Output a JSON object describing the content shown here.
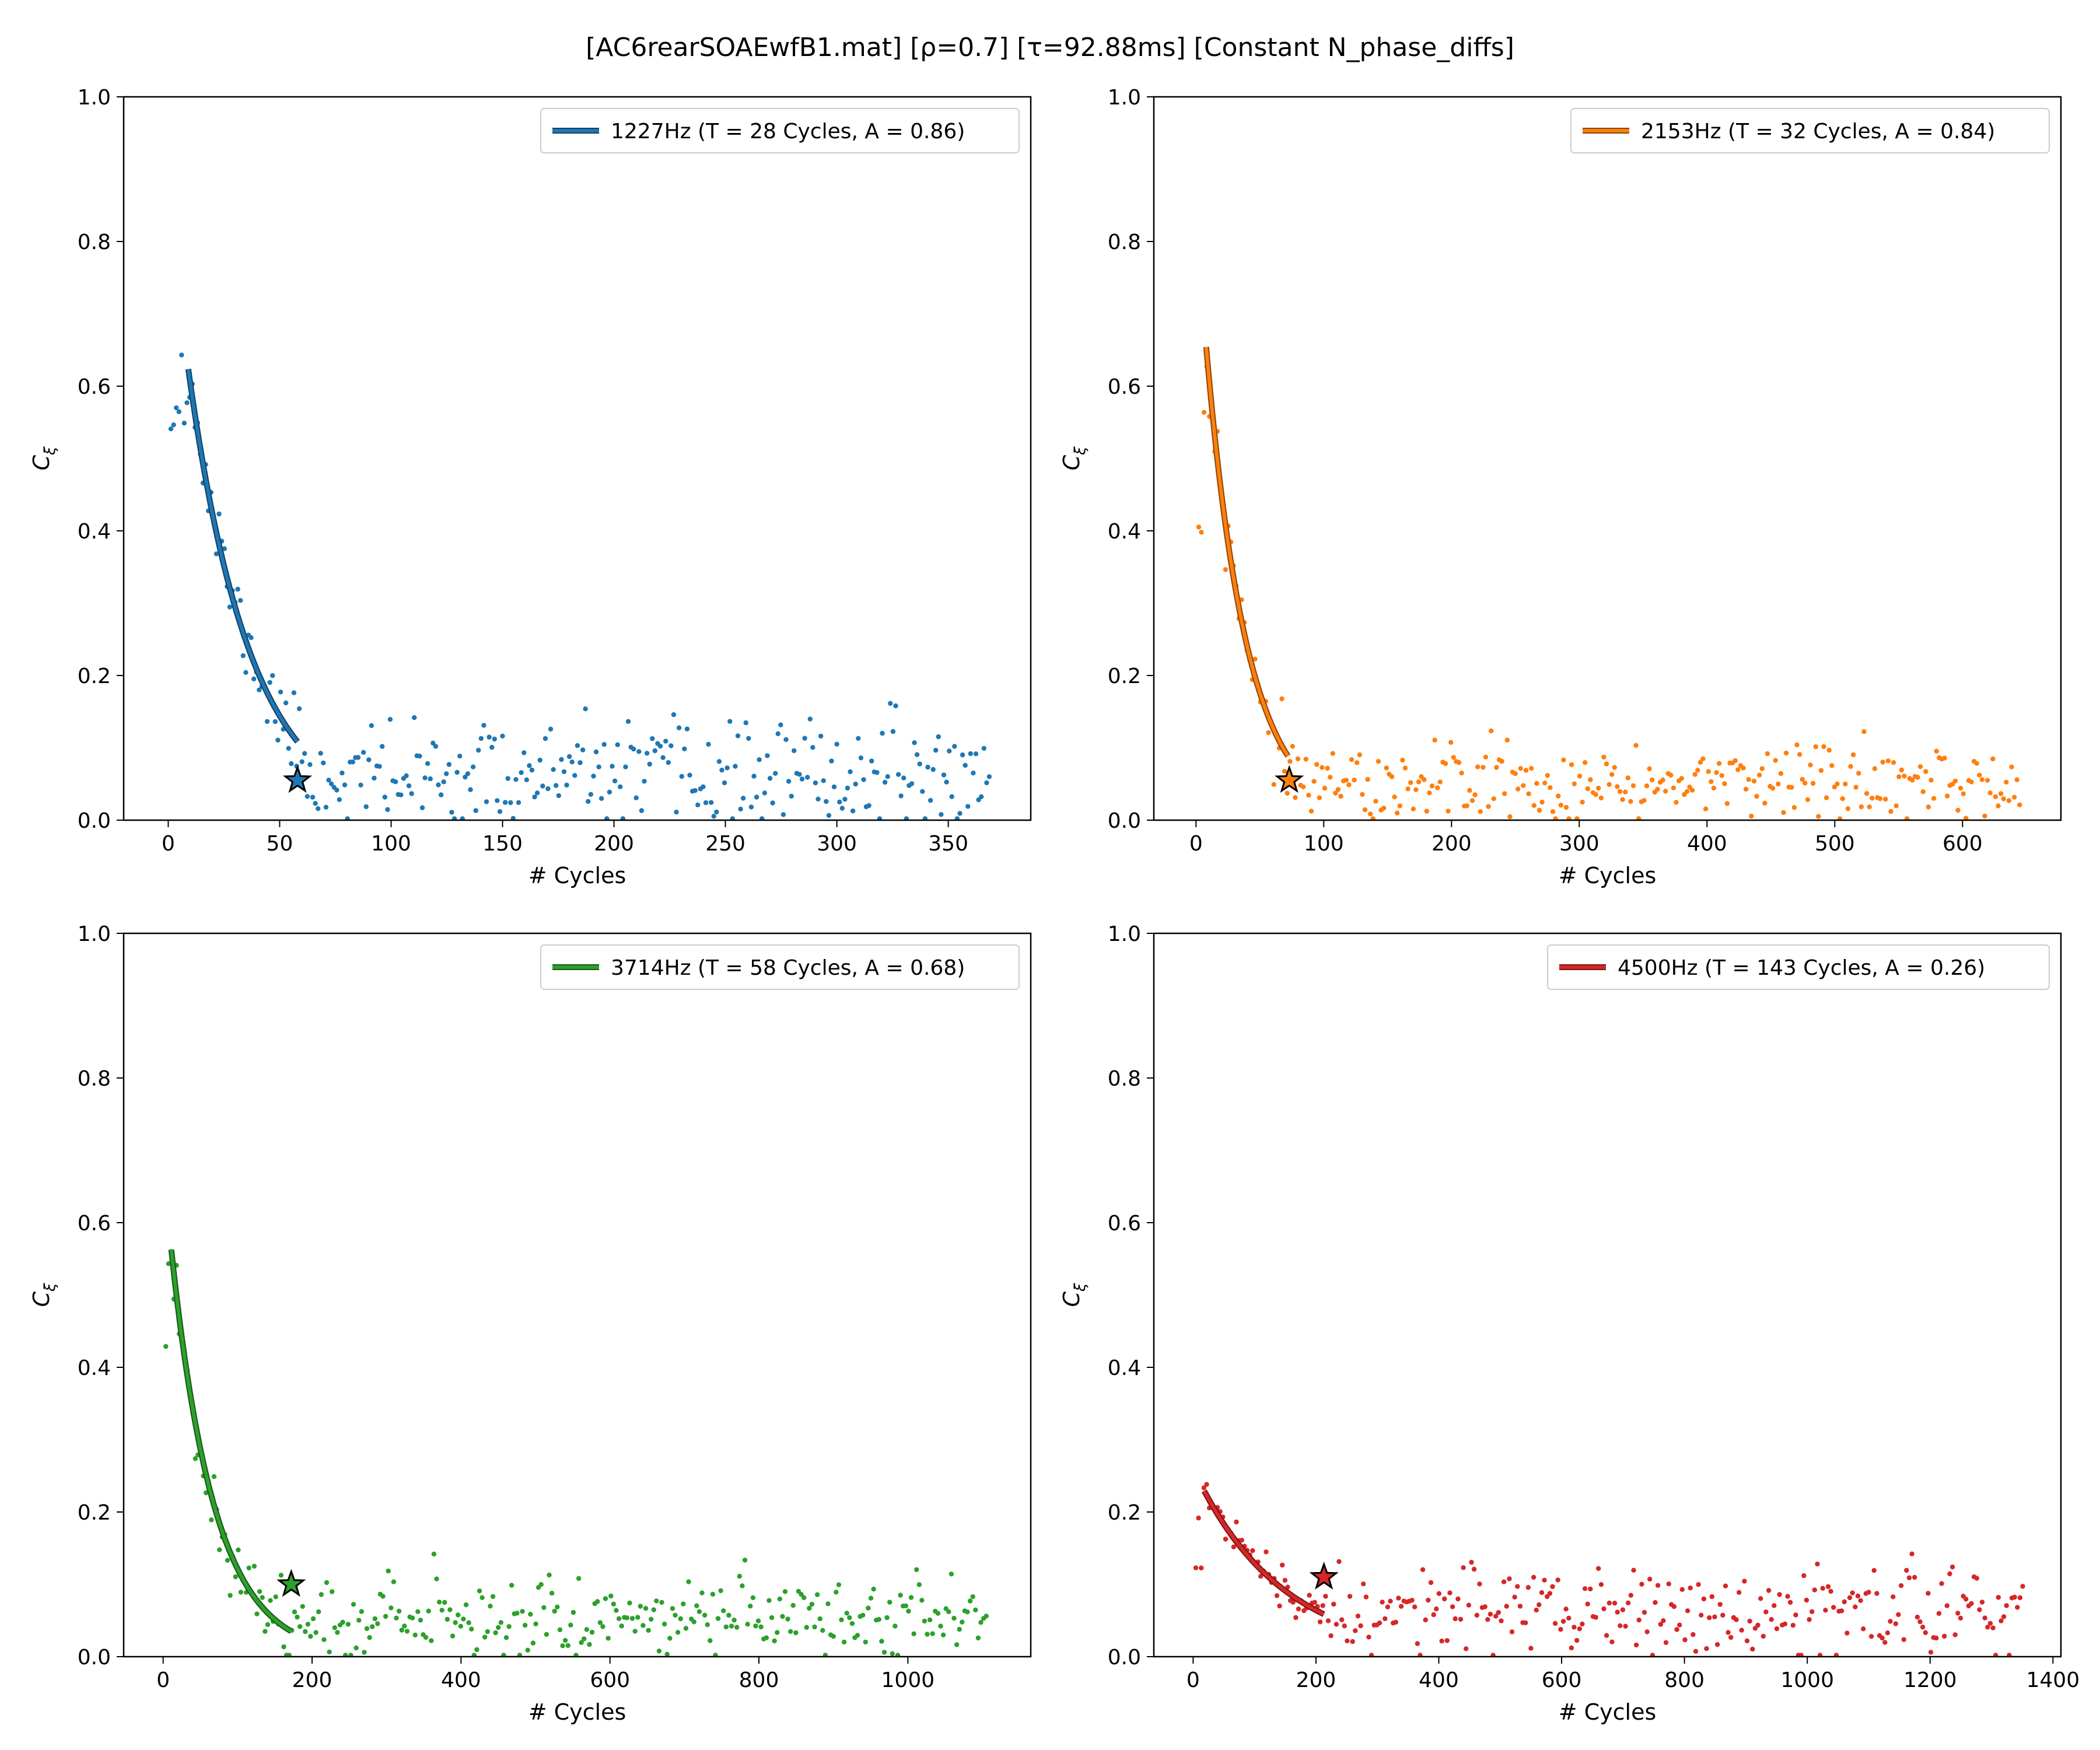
{
  "suptitle": "[AC6rearSOAEwfB1.mat]   [ρ=0.7]   [τ=92.88ms]   [Constant N_phase_diffs]",
  "chart_data": [
    {
      "type": "scatter",
      "color": "#1f77b4",
      "xlabel": "# Cycles",
      "ylabel": "C_ξ",
      "xlim": [
        -20,
        387
      ],
      "ylim": [
        0,
        1.0
      ],
      "xticks": [
        0,
        50,
        100,
        150,
        200,
        250,
        300,
        350
      ],
      "yticks": [
        0.0,
        0.2,
        0.4,
        0.6,
        0.8,
        1.0
      ],
      "legend": "1227Hz (T = 28 Cycles, A = 0.86)",
      "legend_location": "upper right",
      "fit": {
        "A": 0.86,
        "T": 28,
        "x_start": 9,
        "x_end": 58
      },
      "star": {
        "x": 58,
        "y": 0.055
      },
      "scatter": {
        "x_start": 1.2,
        "x_step": 1.2,
        "n": 307,
        "noise_mean": 0.06,
        "noise_sd": 0.035,
        "seed": 11
      }
    },
    {
      "type": "scatter",
      "color": "#ff7f0e",
      "xlabel": "# Cycles",
      "ylabel": "C_ξ",
      "xlim": [
        -33,
        677
      ],
      "ylim": [
        0,
        1.0
      ],
      "xticks": [
        0,
        100,
        200,
        300,
        400,
        500,
        600
      ],
      "yticks": [
        0.0,
        0.2,
        0.4,
        0.6,
        0.8,
        1.0
      ],
      "legend": "2153Hz (T = 32 Cycles, A = 0.84)",
      "legend_location": "upper right",
      "fit": {
        "A": 0.84,
        "T": 32,
        "x_start": 8,
        "x_end": 72
      },
      "star": {
        "x": 73,
        "y": 0.055
      },
      "scatter": {
        "x_start": 2.1,
        "x_step": 2.1,
        "n": 307,
        "noise_mean": 0.05,
        "noise_sd": 0.025,
        "seed": 23
      }
    },
    {
      "type": "scatter",
      "color": "#2ca02c",
      "xlabel": "# Cycles",
      "ylabel": "C_ξ",
      "xlim": [
        -53,
        1165
      ],
      "ylim": [
        0,
        1.0
      ],
      "xticks": [
        0,
        200,
        400,
        600,
        800,
        1000
      ],
      "yticks": [
        0.0,
        0.2,
        0.4,
        0.6,
        0.8,
        1.0
      ],
      "legend": "3714Hz (T = 58 Cycles, A = 0.68)",
      "legend_location": "upper right",
      "fit": {
        "A": 0.68,
        "T": 58,
        "x_start": 11,
        "x_end": 172
      },
      "star": {
        "x": 172,
        "y": 0.1
      },
      "scatter": {
        "x_start": 3.6,
        "x_step": 3.6,
        "n": 307,
        "noise_mean": 0.055,
        "noise_sd": 0.028,
        "seed": 37
      }
    },
    {
      "type": "scatter",
      "color": "#d62728",
      "xlabel": "# Cycles",
      "ylabel": "C_ξ",
      "xlim": [
        -64,
        1413
      ],
      "ylim": [
        0,
        1.0
      ],
      "xticks": [
        0,
        200,
        400,
        600,
        800,
        1000,
        1200,
        1400
      ],
      "yticks": [
        0.0,
        0.2,
        0.4,
        0.6,
        0.8,
        1.0
      ],
      "legend": "4500Hz (T = 143 Cycles, A = 0.26)",
      "legend_location": "upper right",
      "fit": {
        "A": 0.26,
        "T": 143,
        "x_start": 18,
        "x_end": 213
      },
      "star": {
        "x": 213,
        "y": 0.11
      },
      "scatter": {
        "x_start": 4.4,
        "x_step": 4.4,
        "n": 307,
        "noise_mean": 0.06,
        "noise_sd": 0.03,
        "seed": 53
      }
    }
  ]
}
